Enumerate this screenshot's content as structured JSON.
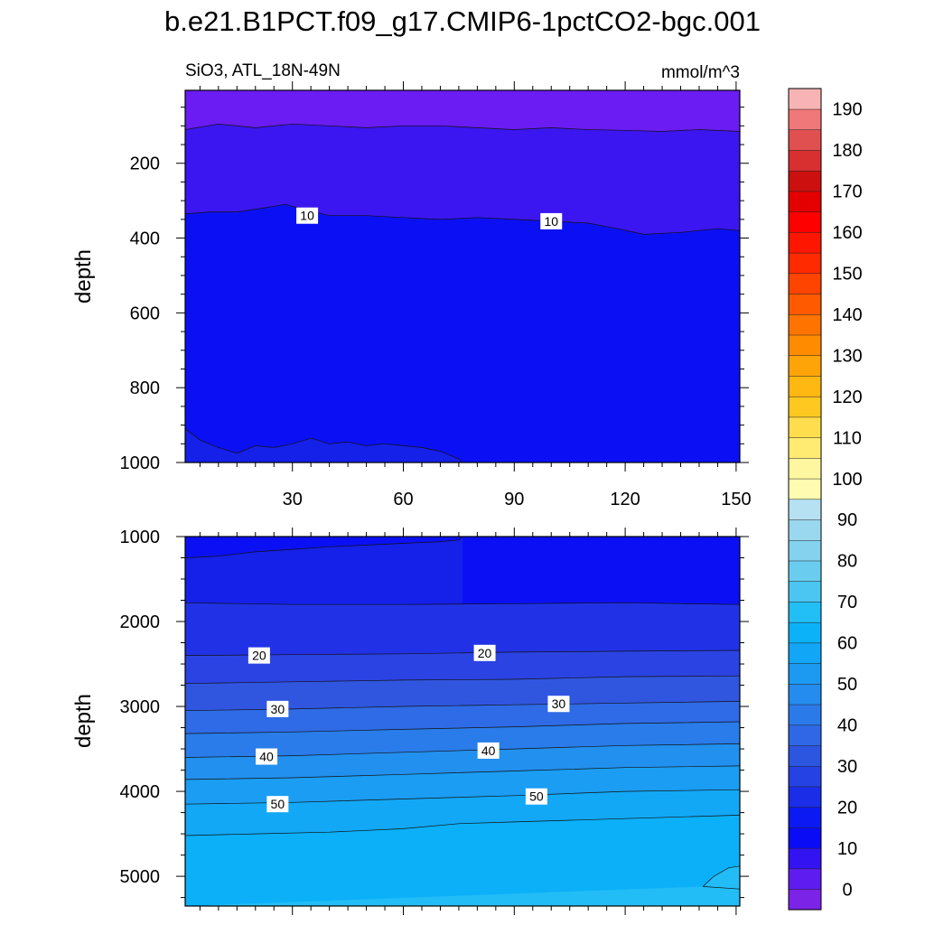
{
  "title": "b.e21.B1PCT.f09_g17.CMIP6-1pctCO2-bgc.001",
  "chart_data": [
    {
      "type": "heatmap",
      "panel": "upper",
      "left_label": "SiO3, ATL_18N-49N",
      "right_label": "mmol/m^3",
      "ylabel": "depth",
      "xlabel": "",
      "xlim": [
        1,
        151
      ],
      "ylim": [
        1000,
        5
      ],
      "xticks": [
        30,
        60,
        90,
        120,
        150
      ],
      "yticks": [
        200,
        400,
        600,
        800,
        1000
      ],
      "contour_labels": [
        {
          "text": "10",
          "x": 34,
          "y": 340
        },
        {
          "text": "10",
          "x": 100,
          "y": 355
        }
      ],
      "boundaries": [
        {
          "lower_level": 0,
          "upper_level": 5,
          "color": "#6a1cf2",
          "depth_x": [
            1,
            10,
            20,
            30,
            40,
            50,
            60,
            70,
            80,
            90,
            100,
            110,
            120,
            130,
            140,
            151
          ],
          "depth": [
            110,
            95,
            105,
            95,
            100,
            105,
            100,
            100,
            105,
            110,
            105,
            110,
            112,
            115,
            110,
            115
          ]
        },
        {
          "lower_level": 5,
          "upper_level": 10,
          "color": "#3b16f0",
          "depth_x": [
            1,
            8,
            15,
            22,
            28,
            34,
            40,
            50,
            60,
            70,
            80,
            90,
            100,
            110,
            118,
            125,
            135,
            145,
            151
          ],
          "depth": [
            335,
            330,
            330,
            320,
            310,
            325,
            340,
            340,
            345,
            350,
            345,
            350,
            355,
            360,
            375,
            390,
            385,
            375,
            380
          ]
        },
        {
          "lower_level": 10,
          "upper_level": 15,
          "color": "#0b10f4",
          "depth_x": [
            1,
            5,
            10,
            15,
            20,
            25,
            30,
            35,
            40,
            45,
            50,
            55,
            60,
            65,
            70,
            75,
            76
          ],
          "depth": [
            910,
            940,
            960,
            975,
            955,
            960,
            950,
            935,
            950,
            945,
            955,
            950,
            955,
            960,
            970,
            990,
            1000
          ]
        },
        {
          "lower_level": 15,
          "upper_level": 20,
          "color": "#1520e8",
          "depth_x": [],
          "depth": []
        }
      ]
    },
    {
      "type": "heatmap",
      "panel": "lower",
      "ylabel": "depth",
      "xlabel": "",
      "xlim": [
        1,
        151
      ],
      "ylim": [
        5350,
        1000
      ],
      "xticks": [
        30,
        60,
        90,
        120,
        150
      ],
      "yticks": [
        1000,
        2000,
        3000,
        4000,
        5000
      ],
      "contour_labels": [
        {
          "text": "20",
          "x": 21,
          "y": 2400
        },
        {
          "text": "20",
          "x": 82,
          "y": 2370
        },
        {
          "text": "30",
          "x": 26,
          "y": 3030
        },
        {
          "text": "30",
          "x": 102,
          "y": 2970
        },
        {
          "text": "40",
          "x": 23,
          "y": 3590
        },
        {
          "text": "40",
          "x": 83,
          "y": 3520
        },
        {
          "text": "50",
          "x": 26,
          "y": 4150
        },
        {
          "text": "50",
          "x": 96,
          "y": 4060
        }
      ],
      "boundaries": [
        {
          "lower_level": 10,
          "upper_level": 15,
          "color": "#0b10f4",
          "depth_x": [
            1,
            10,
            20,
            30,
            40,
            50,
            60,
            70,
            75,
            76
          ],
          "depth": [
            1250,
            1230,
            1180,
            1150,
            1120,
            1100,
            1080,
            1060,
            1040,
            1000
          ]
        },
        {
          "lower_level": 15,
          "upper_level": 20,
          "color": "#1520e8",
          "depth_x": [
            1,
            30,
            60,
            90,
            120,
            151
          ],
          "depth": [
            1780,
            1800,
            1800,
            1790,
            1780,
            1800
          ]
        },
        {
          "lower_level": 20,
          "upper_level": 25,
          "color": "#2132e6",
          "depth_x": [
            1,
            30,
            60,
            90,
            120,
            151
          ],
          "depth": [
            2400,
            2390,
            2380,
            2360,
            2350,
            2340
          ]
        },
        {
          "lower_level": 25,
          "upper_level": 30,
          "color": "#2b43e2",
          "depth_x": [
            1,
            30,
            60,
            90,
            120,
            151
          ],
          "depth": [
            2730,
            2710,
            2690,
            2680,
            2650,
            2640
          ]
        },
        {
          "lower_level": 30,
          "upper_level": 35,
          "color": "#3056e0",
          "depth_x": [
            1,
            30,
            60,
            90,
            120,
            151
          ],
          "depth": [
            3050,
            3030,
            3000,
            2980,
            2960,
            2940
          ]
        },
        {
          "lower_level": 35,
          "upper_level": 40,
          "color": "#2f6be6",
          "depth_x": [
            1,
            30,
            60,
            90,
            120,
            151
          ],
          "depth": [
            3320,
            3300,
            3270,
            3240,
            3200,
            3180
          ]
        },
        {
          "lower_level": 40,
          "upper_level": 45,
          "color": "#297ce9",
          "depth_x": [
            1,
            30,
            60,
            90,
            120,
            151
          ],
          "depth": [
            3600,
            3580,
            3540,
            3500,
            3460,
            3440
          ]
        },
        {
          "lower_level": 45,
          "upper_level": 50,
          "color": "#2290ee",
          "depth_x": [
            1,
            30,
            60,
            90,
            120,
            151
          ],
          "depth": [
            3860,
            3840,
            3800,
            3760,
            3720,
            3700
          ]
        },
        {
          "lower_level": 50,
          "upper_level": 55,
          "color": "#1a9df2",
          "depth_x": [
            1,
            30,
            60,
            90,
            120,
            151
          ],
          "depth": [
            4150,
            4130,
            4090,
            4050,
            4000,
            3980
          ]
        },
        {
          "lower_level": 55,
          "upper_level": 60,
          "color": "#12a8f6",
          "depth_x": [
            1,
            20,
            40,
            60,
            75,
            90,
            120,
            151
          ],
          "depth": [
            4520,
            4500,
            4480,
            4440,
            4380,
            4360,
            4320,
            4280
          ]
        },
        {
          "lower_level": 60,
          "upper_level": 65,
          "color": "#0bb0f8",
          "depth_x": [
            141,
            144,
            148,
            151
          ],
          "depth": [
            5120,
            5000,
            4900,
            4880
          ]
        },
        {
          "lower_level": 65,
          "upper_level": 70,
          "color": "#22bdf6",
          "depth_x": [],
          "depth": []
        }
      ],
      "notes_patch_return": {
        "x": [
          151,
          141
        ],
        "depth": [
          5150,
          5120
        ]
      }
    }
  ],
  "colorbar": {
    "labels": [
      "0",
      "10",
      "20",
      "30",
      "40",
      "50",
      "60",
      "70",
      "80",
      "90",
      "100",
      "110",
      "120",
      "130",
      "140",
      "150",
      "160",
      "170",
      "180",
      "190"
    ],
    "colors": [
      "#7b23e6",
      "#5f1cf0",
      "#3413f2",
      "#0a0cf6",
      "#0b1af2",
      "#1a2ee8",
      "#2542e4",
      "#2c55e0",
      "#2f67e6",
      "#2b7aea",
      "#248cee",
      "#1c9af2",
      "#12a6f6",
      "#0bb2f8",
      "#22bef6",
      "#4bc6f2",
      "#6acdf0",
      "#84d2ee",
      "#9ad8ef",
      "#b6e1f2",
      "#fffbb0",
      "#fff6a0",
      "#ffeb72",
      "#ffdd4c",
      "#ffc820",
      "#ffb712",
      "#ffa408",
      "#ff8c00",
      "#ff7400",
      "#ff5a00",
      "#ff4400",
      "#ff2a00",
      "#ff1600",
      "#ff0000",
      "#e40000",
      "#cc1010",
      "#d83030",
      "#e05050",
      "#f07878",
      "#f8b4b4"
    ]
  }
}
